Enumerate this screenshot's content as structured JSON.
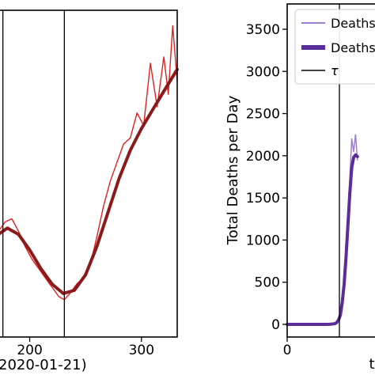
{
  "chart_data": [
    {
      "type": "line",
      "xlabel": "2020-01-21)",
      "xticks": [
        200,
        300
      ],
      "xlim": [
        172,
        332
      ],
      "vlines": [
        176,
        231
      ],
      "series": [
        {
          "name": "",
          "color": "#e02020",
          "x": [
            172,
            178,
            184,
            190,
            196,
            202,
            208,
            214,
            220,
            226,
            231,
            236,
            242,
            248,
            254,
            260,
            266,
            272,
            278,
            284,
            290,
            296,
            302,
            308,
            314,
            320,
            324,
            328,
            332
          ],
          "values": [
            0.34,
            0.37,
            0.38,
            0.34,
            0.29,
            0.25,
            0.22,
            0.19,
            0.16,
            0.13,
            0.12,
            0.14,
            0.17,
            0.19,
            0.23,
            0.32,
            0.42,
            0.5,
            0.56,
            0.62,
            0.64,
            0.72,
            0.68,
            0.88,
            0.74,
            0.9,
            0.78,
            1.0,
            0.82
          ]
        },
        {
          "name": "",
          "color": "#8b1a1a",
          "x": [
            172,
            180,
            190,
            200,
            210,
            220,
            230,
            240,
            250,
            260,
            270,
            280,
            290,
            300,
            310,
            320,
            332
          ],
          "values": [
            0.33,
            0.35,
            0.33,
            0.28,
            0.22,
            0.17,
            0.14,
            0.15,
            0.2,
            0.29,
            0.4,
            0.51,
            0.6,
            0.67,
            0.73,
            0.79,
            0.86
          ]
        }
      ],
      "ylim": [
        0,
        1.05
      ]
    },
    {
      "type": "line",
      "ylabel": "Total Deaths per Day",
      "xlabel": "t",
      "xticks": [
        0
      ],
      "yticks": [
        0,
        500,
        1000,
        1500,
        2000,
        2500,
        3000,
        3500
      ],
      "ylim": [
        -150,
        3800
      ],
      "xlim": [
        0,
        100
      ],
      "vlines": [
        55
      ],
      "legend": {
        "placement": "top-right",
        "entries": [
          "Deaths/",
          "Deaths/",
          "τ"
        ]
      },
      "series": [
        {
          "name": "Deaths/",
          "color": "#9b7fd0",
          "x": [
            0,
            10,
            20,
            30,
            40,
            45,
            50,
            52,
            54,
            56,
            58,
            60,
            62,
            64,
            66,
            68,
            70,
            72,
            74
          ],
          "values": [
            0,
            0,
            0,
            0,
            0,
            2,
            10,
            25,
            60,
            130,
            300,
            550,
            900,
            1300,
            1750,
            2200,
            2050,
            2250,
            1950
          ]
        },
        {
          "name": "Deaths/",
          "color": "#5b2d9c",
          "x": [
            0,
            10,
            20,
            30,
            40,
            45,
            50,
            52,
            54,
            56,
            58,
            60,
            62,
            64,
            66,
            68,
            70,
            72,
            74
          ],
          "values": [
            0,
            0,
            0,
            0,
            0,
            1,
            8,
            20,
            50,
            110,
            260,
            480,
            800,
            1180,
            1560,
            1860,
            1980,
            2010,
            1990
          ]
        }
      ]
    }
  ]
}
